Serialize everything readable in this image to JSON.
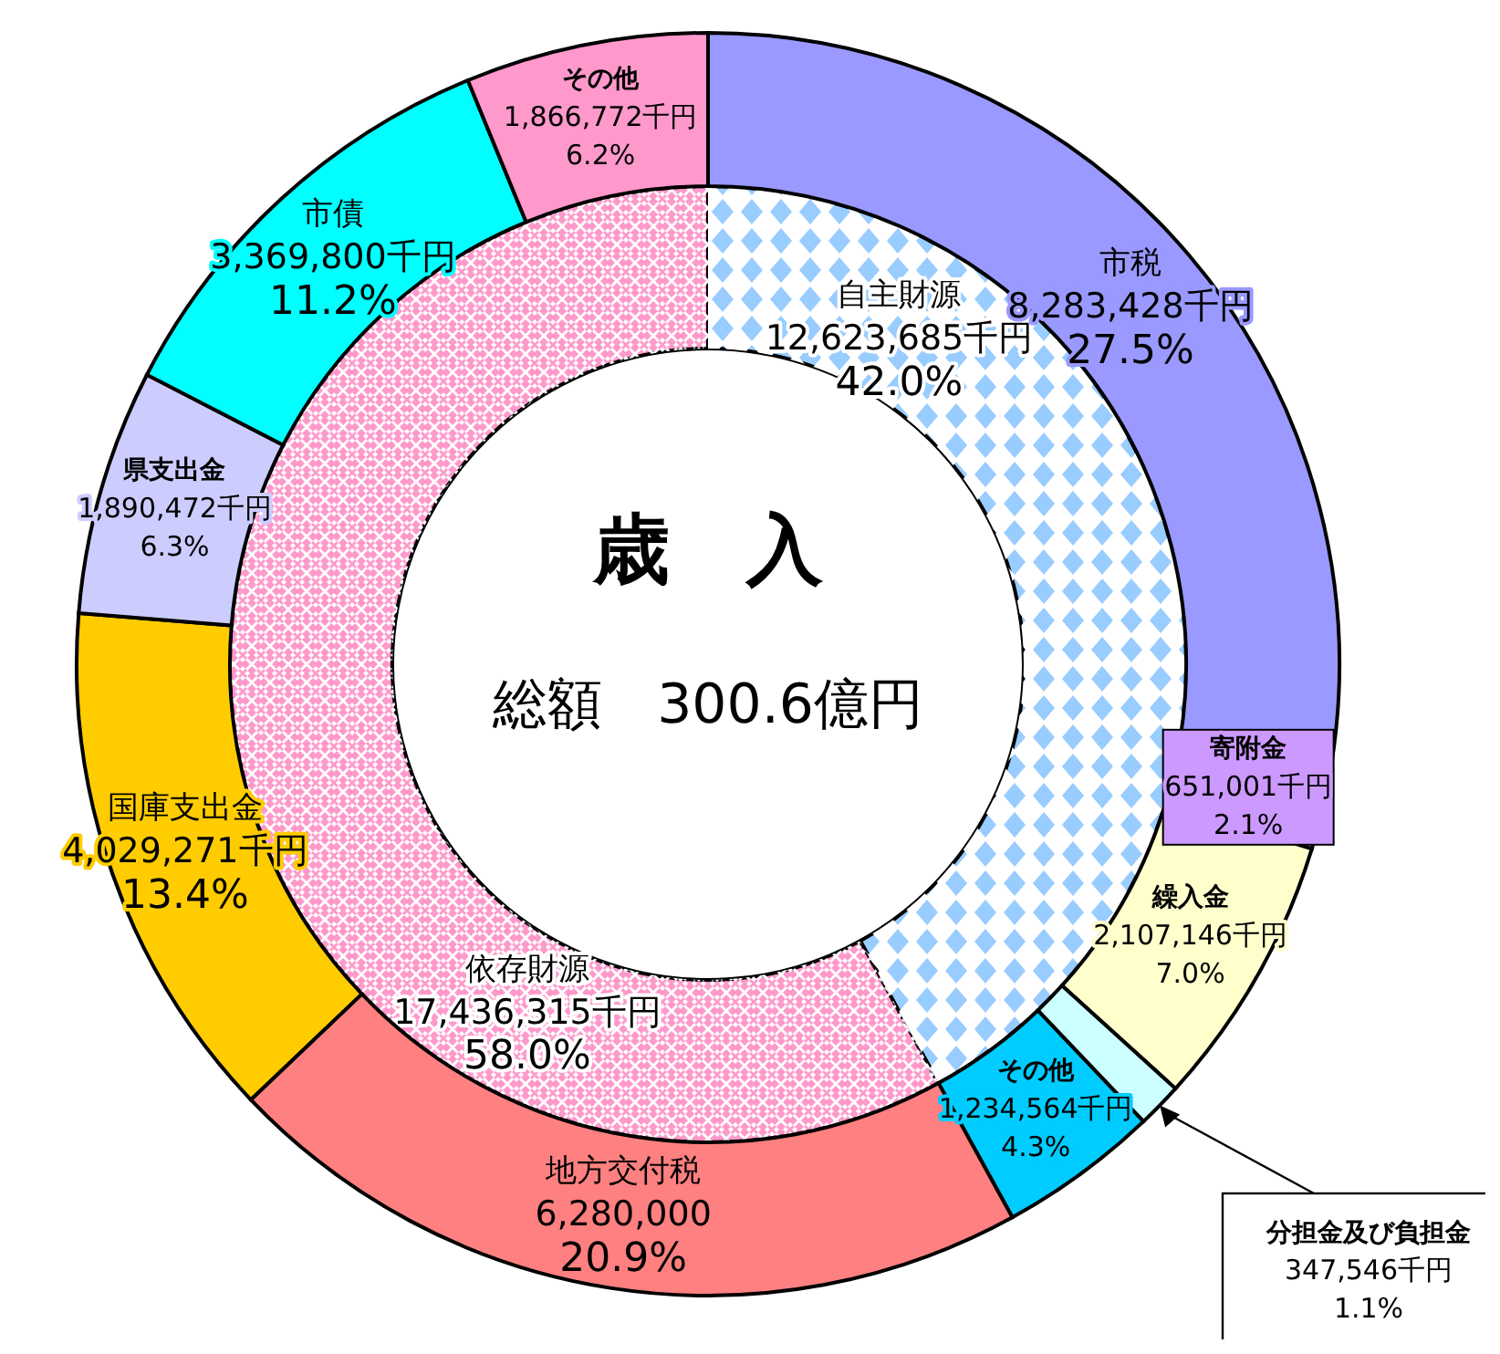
{
  "chart_data": [
    {
      "type": "donut",
      "title": "歳　入",
      "subtitle": "総額　300.6億円",
      "categories": [
        "市税",
        "寄附金",
        "繰入金",
        "分担金及び負担金",
        "その他",
        "地方交付税",
        "国庫支出金",
        "県支出金",
        "市債",
        "その他"
      ],
      "values": [
        8283428,
        651001,
        2107146,
        347546,
        1234564,
        6280000,
        4029271,
        1890472,
        3369800,
        1866772
      ],
      "value_labels": [
        "8,283,428千円\n27.5%",
        "651,001千円\n2.1%",
        "2,107,146千円\n7.0%",
        "347,546千円\n1.1%",
        "1,234,564千円\n4.3%",
        "6,280,000\n20.9%",
        "4,029,271千円\n13.4%",
        "1,890,472千円\n6.3%",
        "3,369,800千円\n11.2%",
        "1,866,772千円\n6.2%"
      ],
      "colors": [
        "#9999ff",
        "#cc99ff",
        "#ffffcc",
        "#ccffff",
        "#00ccff",
        "#ff8080",
        "#ffcc00",
        "#ccccff",
        "#00ffff",
        "#ff99cc"
      ]
    },
    {
      "type": "donut",
      "categories": [
        "自主財源",
        "依存財源"
      ],
      "values": [
        12623685,
        17436315
      ],
      "value_labels": [
        "12,623,685千円\n42.0%",
        "17,436,315千円\n58.0%"
      ],
      "colors": [
        "#99ccff",
        "#ff99cc"
      ]
    }
  ]
}
